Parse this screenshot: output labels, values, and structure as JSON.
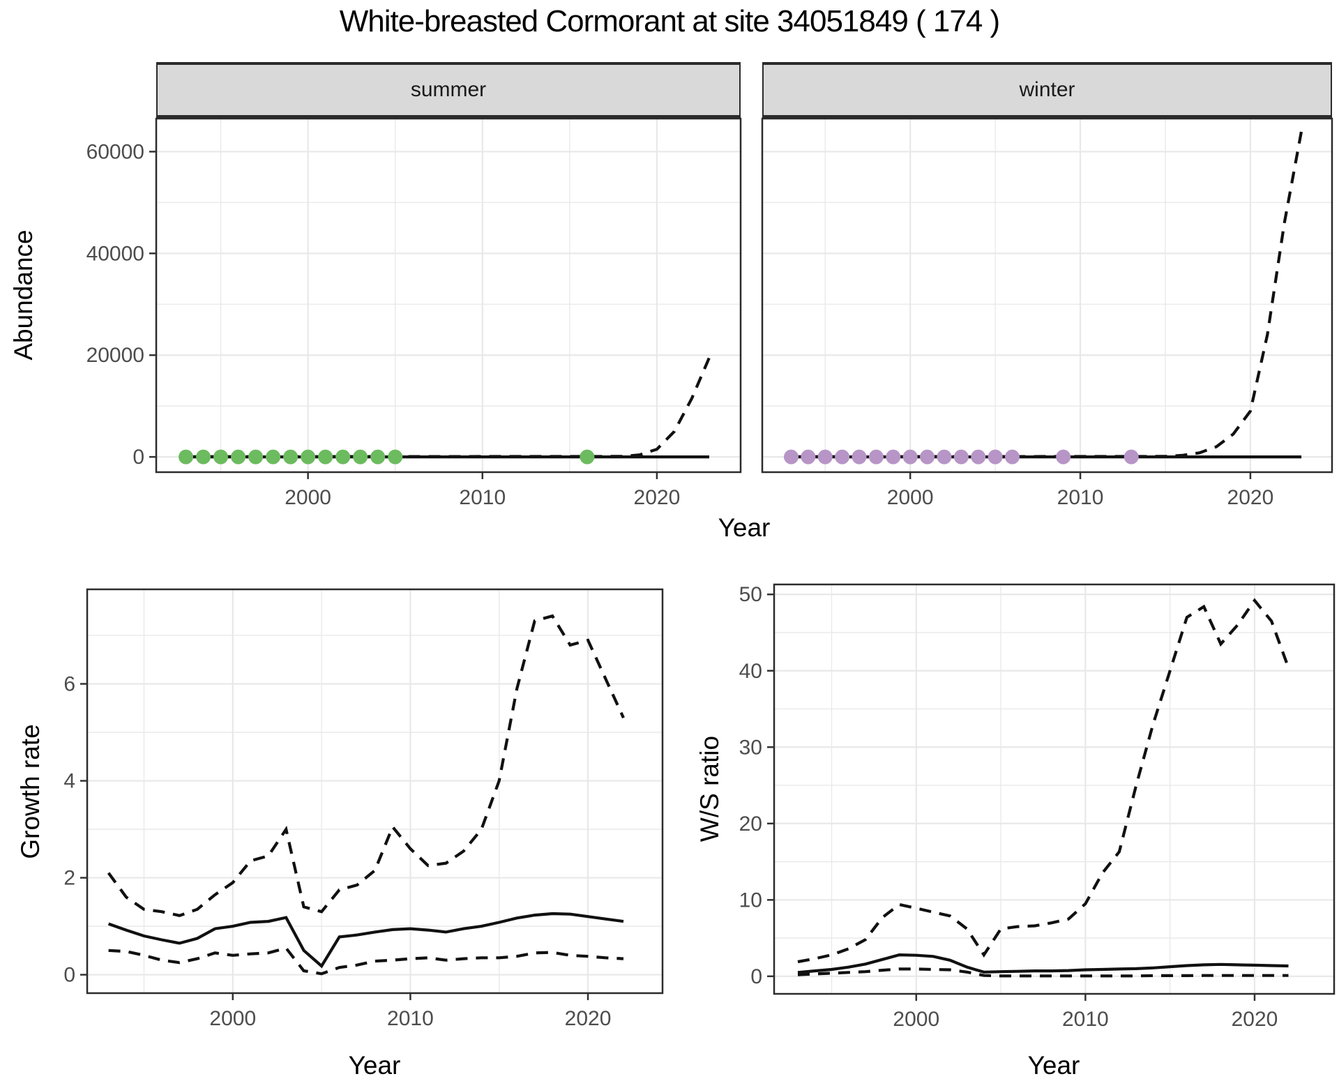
{
  "title": "White-breasted Cormorant at site 34051849 ( 174 )",
  "facets": [
    {
      "label": "summer"
    },
    {
      "label": "winter"
    }
  ],
  "axes": {
    "year_label": "Year",
    "abundance_label": "Abundance",
    "growth_label": "Growth rate",
    "ws_label": "W/S ratio"
  },
  "colors": {
    "summer_point": "#6cbb5f",
    "winter_point": "#b795c7",
    "line": "#111111",
    "grid": "#e8e8e8",
    "panel_border": "#2b2b2b",
    "tick_mark": "#333333",
    "axis_text": "#4d4d4d",
    "strip_bg": "#d9d9d9"
  },
  "chart_data": [
    {
      "id": "abundance-summer",
      "type": "line",
      "facet": "summer",
      "xlabel": "Year",
      "ylabel": "Abundance",
      "xlim": [
        1991.3,
        2024.8
      ],
      "ylim": [
        -3000,
        66500
      ],
      "xticks": [
        2000,
        2010,
        2020
      ],
      "yticks": [
        0,
        20000,
        40000,
        60000
      ],
      "xminor": [
        1995,
        2005,
        2015
      ],
      "yminor": [
        10000,
        30000,
        50000
      ],
      "grid": "on",
      "series": [
        {
          "name": "median",
          "style": "solid",
          "points": [
            [
              1993,
              0
            ],
            [
              2023,
              0
            ]
          ]
        },
        {
          "name": "upper-ci",
          "style": "dashed",
          "points": [
            [
              1993,
              50
            ],
            [
              2018,
              100
            ],
            [
              2019,
              400
            ],
            [
              2020,
              1500
            ],
            [
              2021,
              5000
            ],
            [
              2022,
              11500
            ],
            [
              2023,
              19500
            ]
          ]
        }
      ],
      "points": {
        "name": "observed-summer",
        "color": "#6cbb5f",
        "data": [
          [
            1993,
            0
          ],
          [
            1994,
            0
          ],
          [
            1995,
            0
          ],
          [
            1996,
            0
          ],
          [
            1997,
            0
          ],
          [
            1998,
            0
          ],
          [
            1999,
            0
          ],
          [
            2000,
            0
          ],
          [
            2001,
            0
          ],
          [
            2002,
            0
          ],
          [
            2003,
            0
          ],
          [
            2004,
            0
          ],
          [
            2005,
            0
          ],
          [
            2016,
            0
          ]
        ]
      }
    },
    {
      "id": "abundance-winter",
      "type": "line",
      "facet": "winter",
      "xlabel": "Year",
      "ylabel": "Abundance",
      "xlim": [
        1991.3,
        2024.8
      ],
      "ylim": [
        -3000,
        66500
      ],
      "xticks": [
        2000,
        2010,
        2020
      ],
      "yticks": [
        0,
        20000,
        40000,
        60000
      ],
      "xminor": [
        1995,
        2005,
        2015
      ],
      "yminor": [
        10000,
        30000,
        50000
      ],
      "grid": "on",
      "series": [
        {
          "name": "median",
          "style": "solid",
          "points": [
            [
              1993,
              0
            ],
            [
              2023,
              0
            ]
          ]
        },
        {
          "name": "upper-ci",
          "style": "dashed",
          "points": [
            [
              1993,
              50
            ],
            [
              2015,
              100
            ],
            [
              2016,
              300
            ],
            [
              2017,
              800
            ],
            [
              2018,
              2000
            ],
            [
              2019,
              4500
            ],
            [
              2020,
              9000
            ],
            [
              2021,
              24000
            ],
            [
              2022,
              46000
            ],
            [
              2023,
              64000
            ]
          ]
        }
      ],
      "points": {
        "name": "observed-winter",
        "color": "#b795c7",
        "data": [
          [
            1993,
            0
          ],
          [
            1994,
            0
          ],
          [
            1995,
            0
          ],
          [
            1996,
            0
          ],
          [
            1997,
            0
          ],
          [
            1998,
            0
          ],
          [
            1999,
            0
          ],
          [
            2000,
            0
          ],
          [
            2001,
            0
          ],
          [
            2002,
            0
          ],
          [
            2003,
            0
          ],
          [
            2004,
            0
          ],
          [
            2005,
            0
          ],
          [
            2006,
            0
          ],
          [
            2009,
            0
          ],
          [
            2013,
            0
          ]
        ]
      }
    },
    {
      "id": "growth-rate",
      "type": "line",
      "xlabel": "Year",
      "ylabel": "Growth rate",
      "xlim": [
        1991.8,
        2024.2
      ],
      "ylim": [
        -0.38,
        7.95
      ],
      "xticks": [
        2000,
        2010,
        2020
      ],
      "yticks": [
        0,
        2,
        4,
        6
      ],
      "xminor": [
        1995,
        2005,
        2015
      ],
      "yminor": [
        1,
        3,
        5,
        7
      ],
      "grid": "on",
      "years": [
        1993,
        1994,
        1995,
        1996,
        1997,
        1998,
        1999,
        2000,
        2001,
        2002,
        2003,
        2004,
        2005,
        2006,
        2007,
        2008,
        2009,
        2010,
        2011,
        2012,
        2013,
        2014,
        2015,
        2016,
        2017,
        2018,
        2019,
        2020,
        2021,
        2022
      ],
      "series": [
        {
          "name": "median",
          "style": "solid",
          "values": [
            1.05,
            0.92,
            0.8,
            0.72,
            0.65,
            0.75,
            0.95,
            1.0,
            1.08,
            1.1,
            1.18,
            0.5,
            0.18,
            0.78,
            0.82,
            0.88,
            0.93,
            0.95,
            0.92,
            0.88,
            0.95,
            1.0,
            1.08,
            1.17,
            1.23,
            1.26,
            1.25,
            1.2,
            1.15,
            1.1
          ]
        },
        {
          "name": "upper-ci",
          "style": "dashed",
          "values": [
            2.1,
            1.6,
            1.35,
            1.3,
            1.22,
            1.35,
            1.65,
            1.9,
            2.35,
            2.45,
            3.0,
            1.4,
            1.3,
            1.75,
            1.85,
            2.15,
            3.05,
            2.6,
            2.25,
            2.3,
            2.55,
            3.0,
            4.0,
            5.9,
            7.3,
            7.4,
            6.8,
            6.9,
            6.1,
            5.3
          ]
        },
        {
          "name": "lower-ci",
          "style": "dashed",
          "values": [
            0.5,
            0.48,
            0.4,
            0.3,
            0.25,
            0.33,
            0.45,
            0.4,
            0.43,
            0.45,
            0.55,
            0.08,
            0.02,
            0.15,
            0.2,
            0.28,
            0.3,
            0.33,
            0.35,
            0.3,
            0.33,
            0.35,
            0.35,
            0.38,
            0.45,
            0.46,
            0.4,
            0.38,
            0.35,
            0.33
          ]
        }
      ]
    },
    {
      "id": "ws-ratio",
      "type": "line",
      "xlabel": "Year",
      "ylabel": "W/S ratio",
      "xlim": [
        1991.6,
        2024.7
      ],
      "ylim": [
        -2.3,
        51.3
      ],
      "xticks": [
        2000,
        2010,
        2020
      ],
      "yticks": [
        0,
        10,
        20,
        30,
        40,
        50
      ],
      "xminor": [
        1995,
        2005,
        2015
      ],
      "yminor": [
        5,
        15,
        25,
        35,
        45
      ],
      "grid": "on",
      "years": [
        1993,
        1994,
        1995,
        1996,
        1997,
        1998,
        1999,
        2000,
        2001,
        2002,
        2003,
        2004,
        2005,
        2006,
        2007,
        2008,
        2009,
        2010,
        2011,
        2012,
        2013,
        2014,
        2015,
        2016,
        2017,
        2018,
        2019,
        2020,
        2021,
        2022
      ],
      "series": [
        {
          "name": "median",
          "style": "solid",
          "values": [
            0.5,
            0.7,
            0.9,
            1.2,
            1.6,
            2.2,
            2.8,
            2.75,
            2.6,
            2.1,
            1.2,
            0.55,
            0.6,
            0.65,
            0.7,
            0.7,
            0.75,
            0.85,
            0.9,
            0.95,
            1.0,
            1.1,
            1.25,
            1.4,
            1.5,
            1.55,
            1.5,
            1.45,
            1.4,
            1.35
          ]
        },
        {
          "name": "upper-ci",
          "style": "dashed",
          "values": [
            1.9,
            2.3,
            2.8,
            3.6,
            4.8,
            7.7,
            9.4,
            8.9,
            8.4,
            7.9,
            6.2,
            2.8,
            6.2,
            6.5,
            6.6,
            7.0,
            7.5,
            9.5,
            13.5,
            16.3,
            25,
            33,
            40,
            47,
            48.4,
            43.5,
            46,
            49.2,
            46.5,
            40.4
          ]
        },
        {
          "name": "lower-ci",
          "style": "dashed",
          "values": [
            0.2,
            0.3,
            0.4,
            0.5,
            0.6,
            0.8,
            0.95,
            0.95,
            0.9,
            0.85,
            0.55,
            0.1,
            0.05,
            0.05,
            0.05,
            0.05,
            0.05,
            0.05,
            0.05,
            0.05,
            0.05,
            0.08,
            0.08,
            0.08,
            0.1,
            0.1,
            0.1,
            0.1,
            0.1,
            0.1
          ]
        }
      ]
    }
  ]
}
